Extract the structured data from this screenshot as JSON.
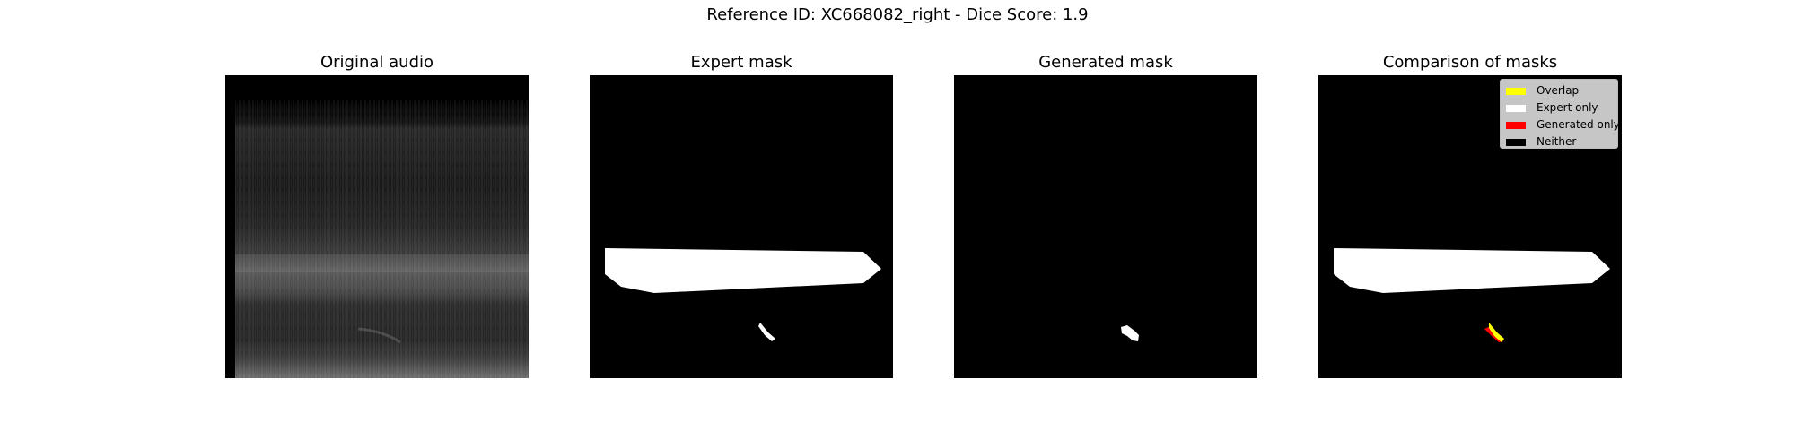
{
  "figure": {
    "suptitle": "Reference ID: XC668082_right - Dice Score: 1.9"
  },
  "panels": [
    {
      "title": "Original audio"
    },
    {
      "title": "Expert mask"
    },
    {
      "title": "Generated mask"
    },
    {
      "title": "Comparison of masks"
    }
  ],
  "legend": {
    "items": [
      {
        "label": "Overlap",
        "color": "#ffff00"
      },
      {
        "label": "Expert only",
        "color": "#ffffff"
      },
      {
        "label": "Generated only",
        "color": "#ff0000"
      },
      {
        "label": "Neither",
        "color": "#000000"
      }
    ]
  },
  "colors": {
    "background": "#000000",
    "mask": "#ffffff",
    "overlap": "#ffff00",
    "generated_only": "#ff0000"
  }
}
